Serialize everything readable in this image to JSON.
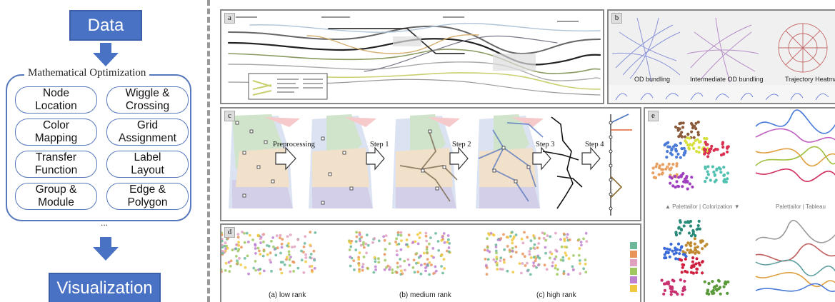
{
  "flow": {
    "data_label": "Data",
    "optimization_title": "Mathematical Optimization",
    "items": [
      {
        "line1": "Node",
        "line2": "Location"
      },
      {
        "line1": "Wiggle &",
        "line2": "Crossing"
      },
      {
        "line1": "Color",
        "line2": "Mapping"
      },
      {
        "line1": "Grid",
        "line2": "Assignment"
      },
      {
        "line1": "Transfer",
        "line2": "Function"
      },
      {
        "line1": "Label",
        "line2": "Layout"
      },
      {
        "line1": "Group &",
        "line2": "Module"
      },
      {
        "line1": "Edge &",
        "line2": "Polygon"
      }
    ],
    "ellipsis": "...",
    "visualization_label": "Visualization"
  },
  "panels": {
    "a": {
      "label": "a"
    },
    "b": {
      "label": "b",
      "captions": [
        "OD bundling",
        "Intermediate OD bundling",
        "Trajectory Heatmap"
      ]
    },
    "c": {
      "label": "c",
      "steps": [
        "Preprocessing",
        "Step 1",
        "Step 2",
        "Step 3",
        "Step 4"
      ]
    },
    "d": {
      "label": "d",
      "captions": [
        "(a) low rank",
        "(b) medium rank",
        "(c) high rank"
      ],
      "swatches": [
        "#6bb89a",
        "#e8945a",
        "#e0a0c0",
        "#a0c860",
        "#c080d0",
        "#f0c840"
      ]
    },
    "e": {
      "label": "e",
      "caption_left": "▲ Palettailor | Colorization ▼",
      "caption_right": "Palettailor | Tableau"
    }
  },
  "colors": {
    "accent": "#4a72c4",
    "border": "#5577bb"
  }
}
